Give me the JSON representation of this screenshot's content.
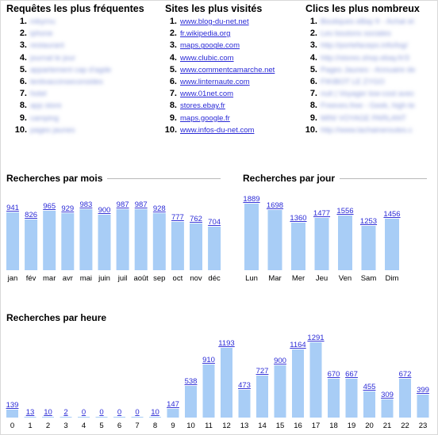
{
  "top_lists": {
    "queries": {
      "title": "Requêtes les plus fréquentes",
      "items": [
        "mbyrnu",
        "iphone",
        "restaurant",
        "journal le jour",
        "appartement cap d'agde",
        "lentivaccinseconsides",
        "hotel",
        "app store",
        "camping",
        "pages jaunes"
      ]
    },
    "sites": {
      "title": "Sites les plus visités",
      "items": [
        "www.blog-du-net.net",
        "fr.wikipedia.org",
        "maps.google.com",
        "www.clubic.com",
        "www.commentcamarche.net",
        "www.linternaute.com",
        "www.01net.com",
        "stores.ebay.fr",
        "maps.google.fr",
        "www.infos-du-net.com"
      ]
    },
    "clicks": {
      "title": "Clics les plus nombreux",
      "items": [
        "Boutiques eBay fr - Achat et",
        "Les boutons sociales",
        "http://portefacepo.info/log/",
        "http://stores.shop.ebay.fr/3",
        "Pages Jaunes - Annuaire de",
        "FIKIBOT LE ZYGO",
        "nuit | Voyager low-cost avec",
        "Freeves.free - Geek, high-te",
        "MINI VOYAGE PARLANT",
        "http://www.lachaineroutes.c"
      ]
    }
  },
  "charts": {
    "month": {
      "title": "Recherches par mois",
      "categories": [
        "jan",
        "fév",
        "mar",
        "avr",
        "mai",
        "juin",
        "juil",
        "août",
        "sep",
        "oct",
        "nov",
        "déc"
      ],
      "values": [
        941,
        826,
        965,
        929,
        983,
        900,
        987,
        987,
        928,
        777,
        762,
        704
      ]
    },
    "day": {
      "title": "Recherches par jour",
      "categories": [
        "Lun",
        "Mar",
        "Mer",
        "Jeu",
        "Ven",
        "Sam",
        "Dim"
      ],
      "values": [
        1889,
        1698,
        1360,
        1477,
        1556,
        1253,
        1456
      ]
    },
    "hour": {
      "title": "Recherches par heure",
      "categories": [
        "0",
        "1",
        "2",
        "3",
        "4",
        "5",
        "6",
        "7",
        "8",
        "9",
        "10",
        "11",
        "12",
        "13",
        "14",
        "15",
        "16",
        "17",
        "18",
        "19",
        "20",
        "21",
        "22",
        "23"
      ],
      "values": [
        139,
        13,
        10,
        2,
        0,
        0,
        0,
        0,
        10,
        147,
        538,
        910,
        1193,
        473,
        727,
        900,
        1164,
        1291,
        670,
        667,
        455,
        309,
        672,
        399
      ]
    }
  },
  "chart_data": [
    {
      "type": "bar",
      "title": "Recherches par mois",
      "categories": [
        "jan",
        "fév",
        "mar",
        "avr",
        "mai",
        "juin",
        "juil",
        "août",
        "sep",
        "oct",
        "nov",
        "déc"
      ],
      "values": [
        941,
        826,
        965,
        929,
        983,
        900,
        987,
        987,
        928,
        777,
        762,
        704
      ],
      "xlabel": "",
      "ylabel": "",
      "grid": false
    },
    {
      "type": "bar",
      "title": "Recherches par jour",
      "categories": [
        "Lun",
        "Mar",
        "Mer",
        "Jeu",
        "Ven",
        "Sam",
        "Dim"
      ],
      "values": [
        1889,
        1698,
        1360,
        1477,
        1556,
        1253,
        1456
      ],
      "xlabel": "",
      "ylabel": "",
      "grid": false
    },
    {
      "type": "bar",
      "title": "Recherches par heure",
      "categories": [
        "0",
        "1",
        "2",
        "3",
        "4",
        "5",
        "6",
        "7",
        "8",
        "9",
        "10",
        "11",
        "12",
        "13",
        "14",
        "15",
        "16",
        "17",
        "18",
        "19",
        "20",
        "21",
        "22",
        "23"
      ],
      "values": [
        139,
        13,
        10,
        2,
        0,
        0,
        0,
        0,
        10,
        147,
        538,
        910,
        1193,
        473,
        727,
        900,
        1164,
        1291,
        670,
        667,
        455,
        309,
        672,
        399
      ],
      "xlabel": "",
      "ylabel": "",
      "grid": false
    }
  ],
  "colors": {
    "bar": "#a8cdf6",
    "link": "#2a2ad6",
    "rule": "#b9b9b9"
  }
}
